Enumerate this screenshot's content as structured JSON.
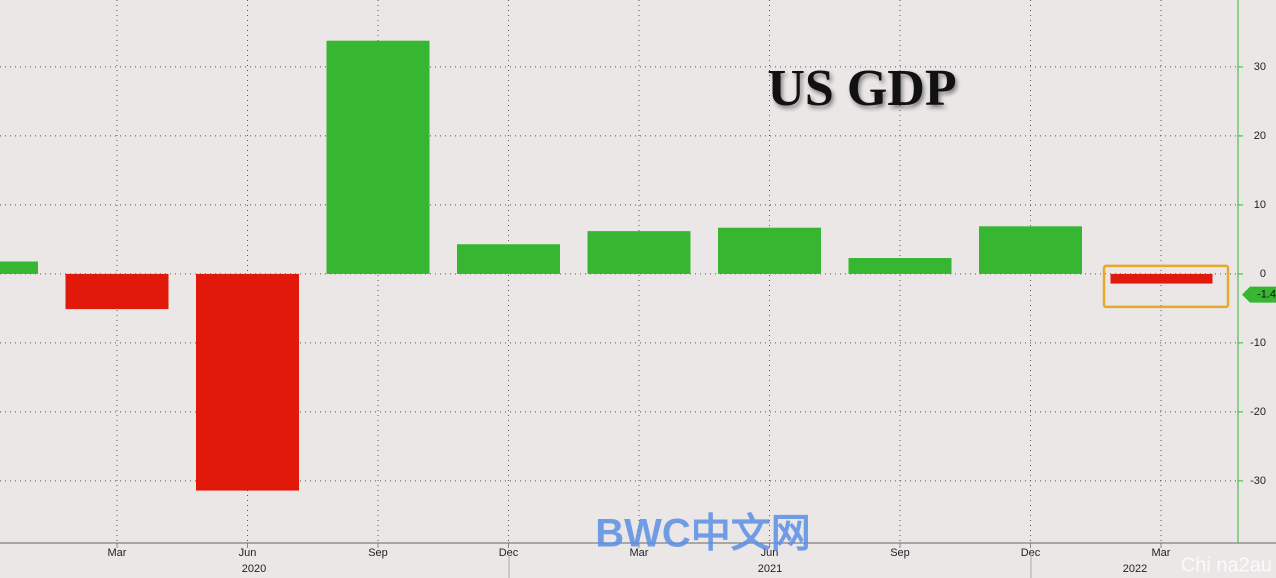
{
  "chart_data": {
    "type": "bar",
    "title": "US GDP",
    "categories": [
      null,
      "Mar",
      "Jun",
      "Sep",
      "Dec",
      "Mar",
      "Jun",
      "Sep",
      "Dec",
      "Mar"
    ],
    "year_labels": [
      "2020",
      "2021",
      "2022"
    ],
    "values": [
      1.8,
      -5.1,
      -31.4,
      33.8,
      4.3,
      6.2,
      6.7,
      2.3,
      6.9,
      -1.4
    ],
    "positive_color": "#36b631",
    "negative_color": "#e0190b",
    "ylim": [
      -39,
      39.7
    ],
    "yticks": [
      -30,
      -20,
      -10,
      0,
      10,
      20,
      30
    ],
    "grid": true,
    "watermarks": [
      "BWC中文网",
      "Chi na2au"
    ]
  }
}
